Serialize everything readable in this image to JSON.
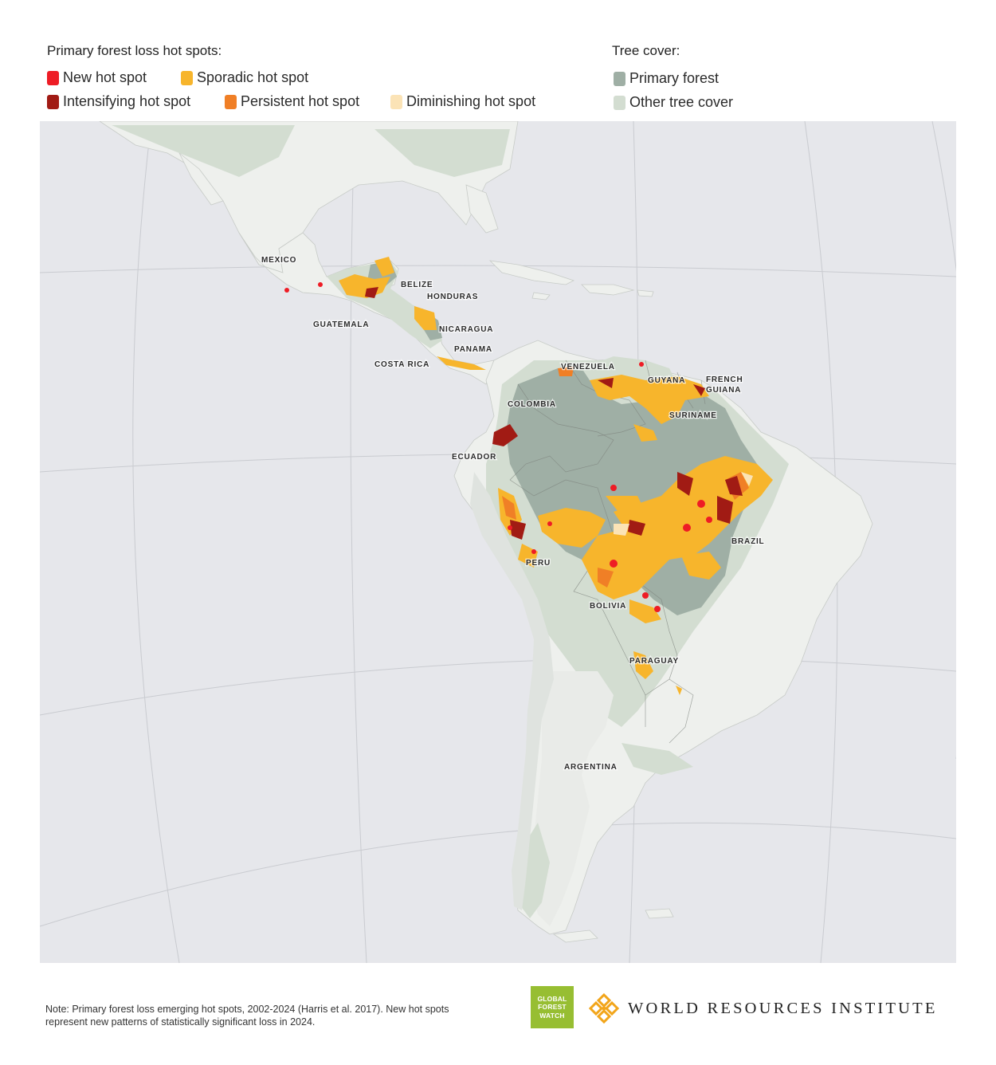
{
  "legend": {
    "hotspots_title": "Primary forest loss hot spots:",
    "hotspots": [
      {
        "label": "New hot spot",
        "color": "#ee1c25"
      },
      {
        "label": "Sporadic hot spot",
        "color": "#f7b52c"
      },
      {
        "label": "Intensifying hot spot",
        "color": "#a11b14"
      },
      {
        "label": "Persistent hot spot",
        "color": "#f07f26"
      },
      {
        "label": "Diminishing hot spot",
        "color": "#fbe3b6"
      }
    ],
    "tree_cover_title": "Tree cover:",
    "tree_cover": [
      {
        "label": "Primary forest",
        "color": "#9fafa5"
      },
      {
        "label": "Other tree cover",
        "color": "#d3ddd1"
      }
    ]
  },
  "map": {
    "labels": [
      "MEXICO",
      "BELIZE",
      "HONDURAS",
      "GUATEMALA",
      "NICARAGUA",
      "PANAMA",
      "COSTA RICA",
      "VENEZUELA",
      "GUYANA",
      "FRENCH",
      "GUIANA",
      "SURINAME",
      "COLOMBIA",
      "ECUADOR",
      "BRAZIL",
      "PERU",
      "BOLIVIA",
      "PARAGUAY",
      "ARGENTINA"
    ],
    "colors": {
      "ocean": "#e6e7eb",
      "land": "#eef0ed",
      "primary_forest": "#9fafa5",
      "other_tree_cover": "#d3ddd1",
      "graticule": "#c9cbd0"
    }
  },
  "footer": {
    "note": "Note: Primary forest loss emerging hot spots, 2002-2024 (Harris et al. 2017). New hot spots represent new patterns of statistically significant loss in 2024.",
    "gfw_logo": [
      "GLOBAL",
      "FOREST",
      "WATCH"
    ],
    "wri_logo": "WORLD RESOURCES INSTITUTE"
  }
}
